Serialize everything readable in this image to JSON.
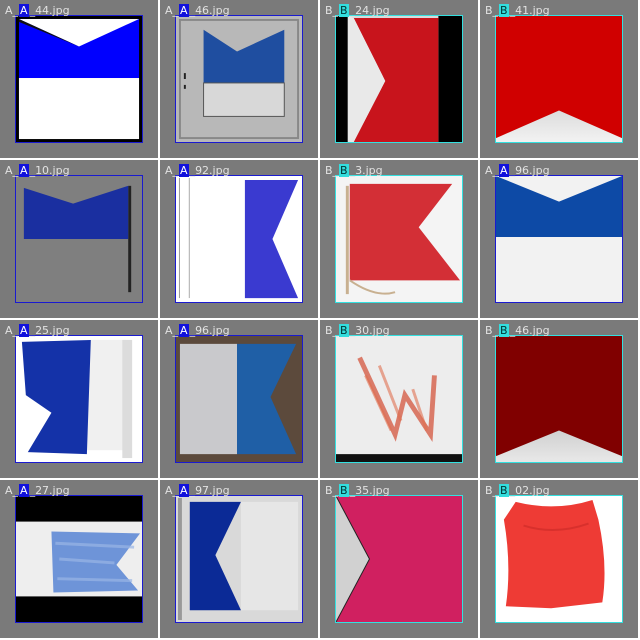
{
  "colors": {
    "class_A_box": "#1a1ad0",
    "class_A_tag_bg": "#1111dd",
    "class_B_box": "#33e0e0",
    "class_B_tag_bg": "#33dddd",
    "cell_background": "#7a7a7a",
    "caption_text": "#e2e2e2"
  },
  "tiles": [
    {
      "prefix": "A_",
      "tag": "A",
      "suffix": "_44.jpg",
      "class": "A",
      "icon": "flag-alpha-photo"
    },
    {
      "prefix": "A_",
      "tag": "A",
      "suffix": "_46.jpg",
      "class": "A",
      "icon": "flag-alpha-photo"
    },
    {
      "prefix": "B_",
      "tag": "B",
      "suffix": "_24.jpg",
      "class": "B",
      "icon": "flag-bravo-photo"
    },
    {
      "prefix": "B_",
      "tag": "B",
      "suffix": "_41.jpg",
      "class": "B",
      "icon": "flag-bravo-photo"
    },
    {
      "prefix": "A_",
      "tag": "A",
      "suffix": "_10.jpg",
      "class": "A",
      "icon": "flag-alpha-photo"
    },
    {
      "prefix": "A_",
      "tag": "A",
      "suffix": "_92.jpg",
      "class": "A",
      "icon": "flag-alpha-photo"
    },
    {
      "prefix": "B_",
      "tag": "B",
      "suffix": "_3.jpg",
      "class": "B",
      "icon": "flag-bravo-photo"
    },
    {
      "prefix": "A_",
      "tag": "A",
      "suffix": "_96.jpg",
      "class": "A",
      "icon": "flag-alpha-photo"
    },
    {
      "prefix": "A_",
      "tag": "A",
      "suffix": "_25.jpg",
      "class": "A",
      "icon": "flag-alpha-photo"
    },
    {
      "prefix": "A_",
      "tag": "A",
      "suffix": "_96.jpg",
      "class": "A",
      "icon": "flag-alpha-photo"
    },
    {
      "prefix": "B_",
      "tag": "B",
      "suffix": "_30.jpg",
      "class": "B",
      "icon": "flag-bravo-photo"
    },
    {
      "prefix": "B_",
      "tag": "B",
      "suffix": "_46.jpg",
      "class": "B",
      "icon": "flag-bravo-photo"
    },
    {
      "prefix": "A_",
      "tag": "A",
      "suffix": "_27.jpg",
      "class": "A",
      "icon": "flag-alpha-photo"
    },
    {
      "prefix": "A_",
      "tag": "A",
      "suffix": "_97.jpg",
      "class": "A",
      "icon": "flag-alpha-photo"
    },
    {
      "prefix": "B_",
      "tag": "B",
      "suffix": "_35.jpg",
      "class": "B",
      "icon": "flag-bravo-photo"
    },
    {
      "prefix": "B_",
      "tag": "B",
      "suffix": "_02.jpg",
      "class": "B",
      "icon": "flag-bravo-photo"
    }
  ]
}
